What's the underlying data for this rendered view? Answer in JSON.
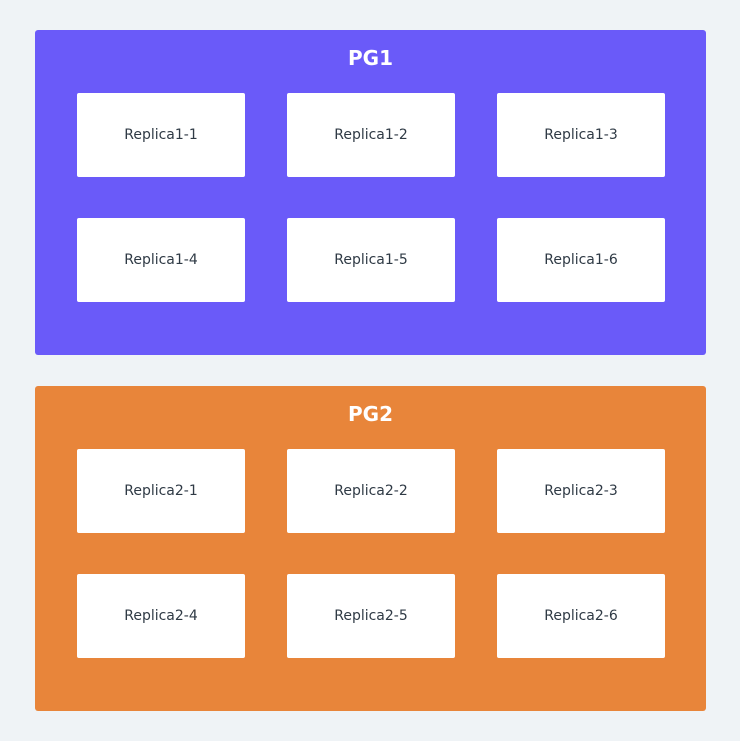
{
  "colors": {
    "background": "#eff3f6",
    "pg1": "#6a5af9",
    "pg2": "#e8853a",
    "replica_box": "#ffffff",
    "replica_text": "#2f3a45"
  },
  "groups": [
    {
      "title": "PG1",
      "replicas": [
        "Replica1-1",
        "Replica1-2",
        "Replica1-3",
        "Replica1-4",
        "Replica1-5",
        "Replica1-6"
      ]
    },
    {
      "title": "PG2",
      "replicas": [
        "Replica2-1",
        "Replica2-2",
        "Replica2-3",
        "Replica2-4",
        "Replica2-5",
        "Replica2-6"
      ]
    }
  ]
}
